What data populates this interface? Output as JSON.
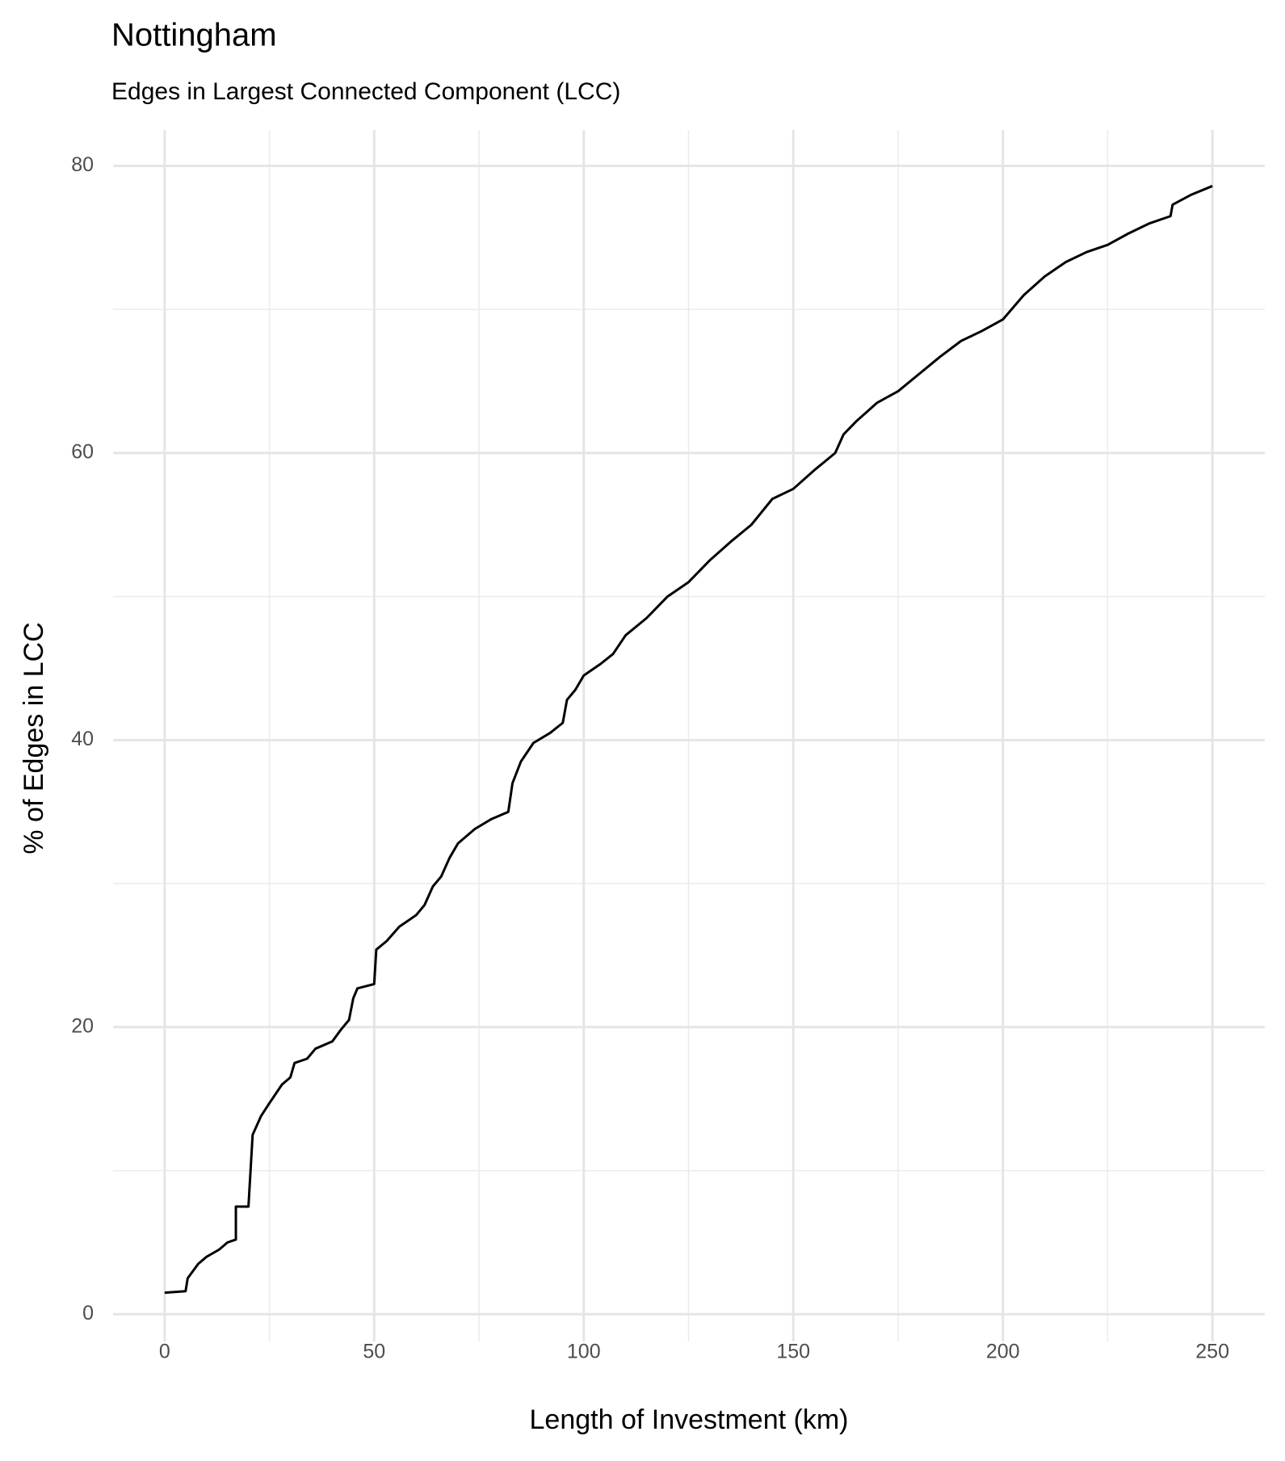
{
  "chart_data": {
    "type": "line",
    "title": "Nottingham",
    "subtitle": "Edges in Largest Connected Component (LCC)",
    "x_label": "Length of Investment (km)",
    "y_label": "% of Edges in LCC",
    "x": [
      0,
      5,
      5.5,
      8,
      10,
      13,
      15,
      17,
      17,
      20,
      20.5,
      21,
      23,
      25,
      28,
      30,
      31,
      34,
      36,
      40,
      42,
      44,
      45,
      46,
      50,
      50.5,
      53,
      56,
      60,
      62,
      64,
      66,
      68,
      70,
      74,
      78,
      82,
      83,
      85,
      88,
      92,
      95,
      96,
      98,
      100,
      104,
      107,
      110,
      115,
      120,
      125,
      130,
      135,
      140,
      145,
      150,
      155,
      160,
      162,
      165,
      170,
      175,
      180,
      185,
      190,
      195,
      200,
      205,
      210,
      215,
      220,
      225,
      230,
      235,
      240,
      240.5,
      245,
      250
    ],
    "series": [
      {
        "name": "LCC",
        "color": "#000000",
        "values": [
          1.5,
          1.6,
          2.5,
          3.5,
          4,
          4.5,
          5,
          5.2,
          7.5,
          7.5,
          10,
          12.5,
          13.8,
          14.7,
          16,
          16.5,
          17.5,
          17.8,
          18.5,
          19,
          19.8,
          20.5,
          22,
          22.7,
          23,
          25.4,
          26,
          27,
          27.8,
          28.5,
          29.8,
          30.5,
          31.8,
          32.8,
          33.8,
          34.5,
          35,
          37,
          38.5,
          39.8,
          40.5,
          41.2,
          42.8,
          43.5,
          44.5,
          45.3,
          46,
          47.3,
          48.5,
          50,
          51,
          52.5,
          53.8,
          55,
          56.8,
          57.5,
          58.8,
          60,
          61.3,
          62.2,
          63.5,
          64.3,
          65.5,
          66.7,
          67.8,
          68.5,
          69.3,
          71,
          72.3,
          73.3,
          74,
          74.5,
          75.3,
          76,
          76.5,
          77.3,
          78,
          78.6
        ]
      }
    ],
    "xlim": [
      -12.3,
      262.5
    ],
    "ylim": [
      -1.9,
      82.5
    ],
    "xticks": [
      0,
      50,
      100,
      150,
      200,
      250
    ],
    "yticks": [
      0,
      20,
      40,
      60,
      80
    ],
    "xminor": [
      25,
      75,
      125,
      175,
      225
    ],
    "yminor": [
      10,
      30,
      50,
      70
    ],
    "grid": true
  }
}
